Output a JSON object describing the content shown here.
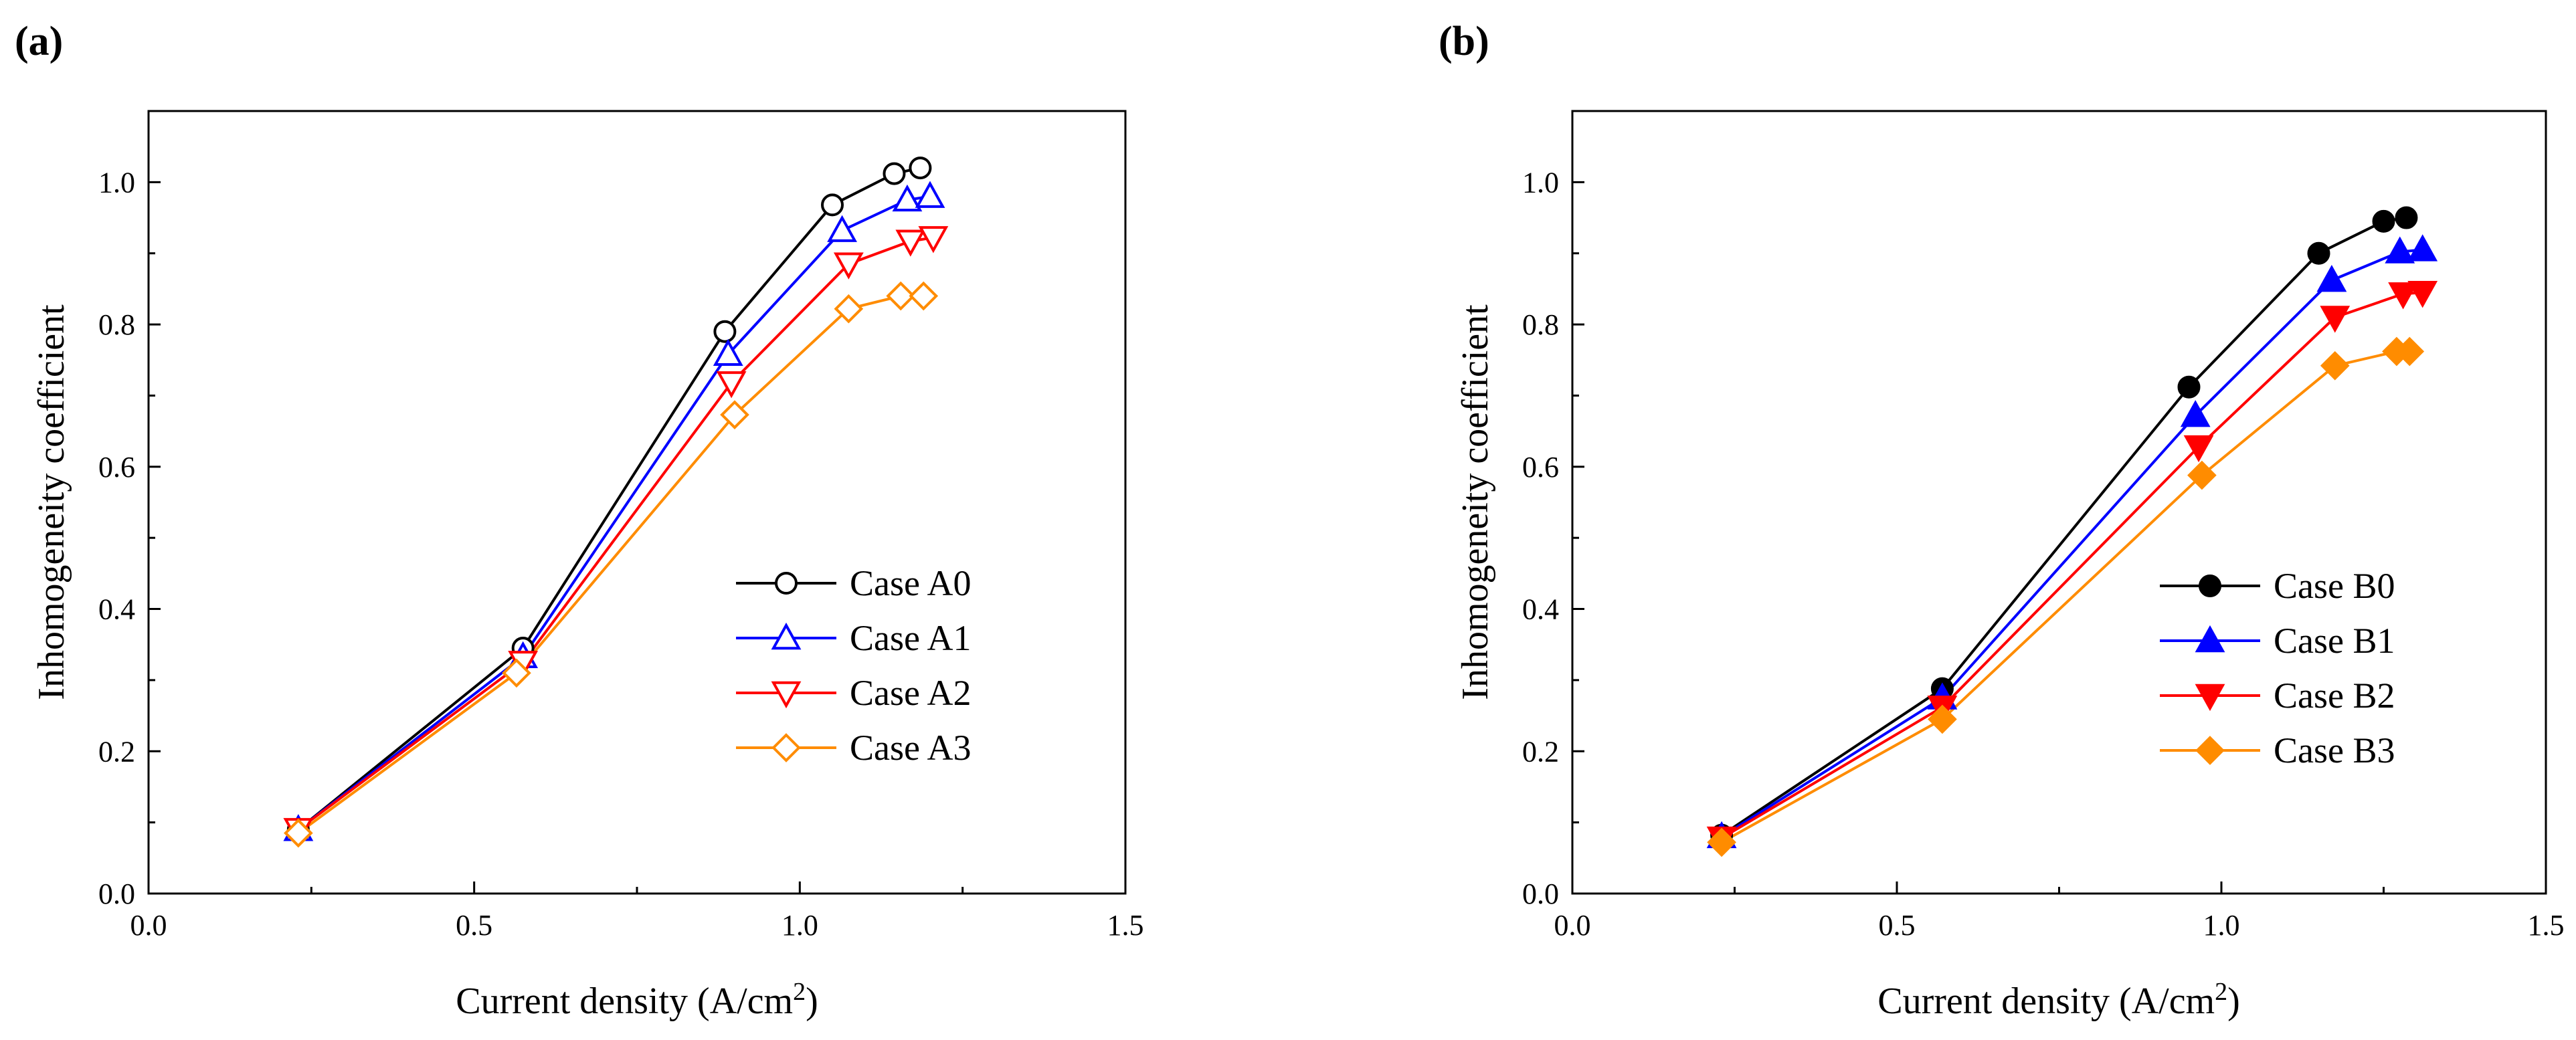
{
  "chart_data": [
    {
      "panel_label": "(a)",
      "type": "line",
      "xlabel": "Current density (A/cm",
      "xlabel_sup": "2",
      "xlabel_tail": ")",
      "ylabel": "Inhomogeneity coefficient",
      "xlim": [
        0.0,
        1.5
      ],
      "ylim": [
        0.0,
        1.1
      ],
      "xticks": [
        "0.0",
        "0.5",
        "1.0",
        "1.5"
      ],
      "yticks": [
        "0.0",
        "0.2",
        "0.4",
        "0.6",
        "0.8",
        "1.0"
      ],
      "legend_position": "lower-right",
      "series": [
        {
          "name": "Case A0",
          "color": "#000000",
          "marker": "circle",
          "filled": false,
          "x": [
            0.23,
            0.575,
            0.885,
            1.05,
            1.145,
            1.185
          ],
          "y": [
            0.09,
            0.345,
            0.79,
            0.968,
            1.012,
            1.02
          ]
        },
        {
          "name": "Case A1",
          "color": "#0000ff",
          "marker": "triangle-up",
          "filled": false,
          "x": [
            0.23,
            0.575,
            0.89,
            1.065,
            1.165,
            1.2
          ],
          "y": [
            0.09,
            0.333,
            0.758,
            0.932,
            0.975,
            0.98
          ]
        },
        {
          "name": "Case A2",
          "color": "#ff0000",
          "marker": "triangle-down",
          "filled": false,
          "x": [
            0.23,
            0.575,
            0.895,
            1.075,
            1.17,
            1.205
          ],
          "y": [
            0.09,
            0.325,
            0.718,
            0.885,
            0.917,
            0.922
          ]
        },
        {
          "name": "Case A3",
          "color": "#ff8c00",
          "marker": "diamond",
          "filled": false,
          "x": [
            0.23,
            0.565,
            0.9,
            1.075,
            1.155,
            1.19
          ],
          "y": [
            0.085,
            0.31,
            0.673,
            0.822,
            0.84,
            0.84
          ]
        }
      ]
    },
    {
      "panel_label": "(b)",
      "type": "line",
      "xlabel": "Current density (A/cm",
      "xlabel_sup": "2",
      "xlabel_tail": ")",
      "ylabel": "Inhomogeneity coefficient",
      "xlim": [
        0.0,
        1.5
      ],
      "ylim": [
        0.0,
        1.1
      ],
      "xticks": [
        "0.0",
        "0.5",
        "1.0",
        "1.5"
      ],
      "yticks": [
        "0.0",
        "0.2",
        "0.4",
        "0.6",
        "0.8",
        "1.0"
      ],
      "legend_position": "lower-right",
      "series": [
        {
          "name": "Case B0",
          "color": "#000000",
          "marker": "circle",
          "filled": true,
          "x": [
            0.23,
            0.57,
            0.95,
            1.15,
            1.25,
            1.285
          ],
          "y": [
            0.082,
            0.288,
            0.712,
            0.9,
            0.945,
            0.95
          ]
        },
        {
          "name": "Case B1",
          "color": "#0000ff",
          "marker": "triangle-up",
          "filled": true,
          "x": [
            0.23,
            0.57,
            0.96,
            1.17,
            1.275,
            1.31
          ],
          "y": [
            0.08,
            0.275,
            0.672,
            0.862,
            0.902,
            0.905
          ]
        },
        {
          "name": "Case B2",
          "color": "#ff0000",
          "marker": "triangle-down",
          "filled": true,
          "x": [
            0.23,
            0.57,
            0.965,
            1.175,
            1.28,
            1.31
          ],
          "y": [
            0.078,
            0.262,
            0.628,
            0.81,
            0.843,
            0.845
          ]
        },
        {
          "name": "Case B3",
          "color": "#ff8c00",
          "marker": "diamond",
          "filled": true,
          "x": [
            0.23,
            0.57,
            0.97,
            1.175,
            1.27,
            1.29
          ],
          "y": [
            0.072,
            0.245,
            0.588,
            0.742,
            0.762,
            0.762
          ]
        }
      ]
    }
  ]
}
